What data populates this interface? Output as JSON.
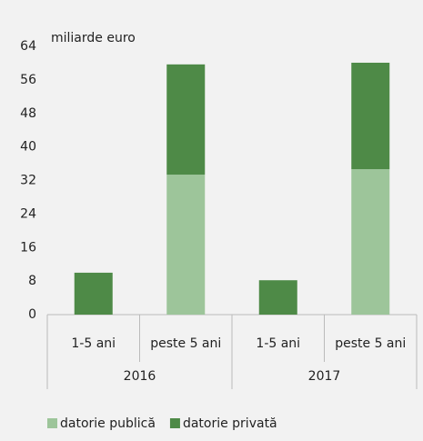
{
  "chart_data": {
    "type": "stacked_bar",
    "y_label": "miliarde euro",
    "categories": [
      "1-5 ani",
      "peste 5 ani",
      "1-5 ani",
      "peste 5 ani"
    ],
    "groups": [
      "2016",
      "2017"
    ],
    "series": [
      {
        "name": "datorie publică",
        "color": "#9dc59a",
        "values": [
          0,
          33.4,
          0,
          34.7
        ]
      },
      {
        "name": "datorie privată",
        "color": "#4e8a47",
        "values": [
          10,
          26.3,
          8.2,
          25.4
        ]
      }
    ],
    "ylim": [
      0,
      64
    ],
    "yticks": [
      0,
      8,
      16,
      24,
      32,
      40,
      48,
      56,
      64
    ]
  }
}
